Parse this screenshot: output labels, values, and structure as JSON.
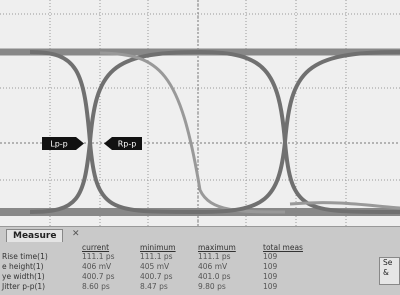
{
  "markers": {
    "left": "Lp-p",
    "right": "Rp-p"
  },
  "panel": {
    "tab": "Measure",
    "table": {
      "headers": [
        "current",
        "minimum",
        "maximum",
        "total meas"
      ],
      "rows": [
        [
          "Rise time(1)",
          "111.1 ps",
          "111.1 ps",
          "111.1 ps",
          "109"
        ],
        [
          "e height(1)",
          "406 mV",
          "405 mV",
          "406 mV",
          "109"
        ],
        [
          "ye width(1)",
          "400.7 ps",
          "400.7 ps",
          "401.0 ps",
          "109"
        ],
        [
          "Jitter p-p(1)",
          "8.60 ps",
          "8.47 ps",
          "9.80 ps",
          "109"
        ]
      ]
    },
    "button": [
      "Se",
      "&"
    ]
  }
}
